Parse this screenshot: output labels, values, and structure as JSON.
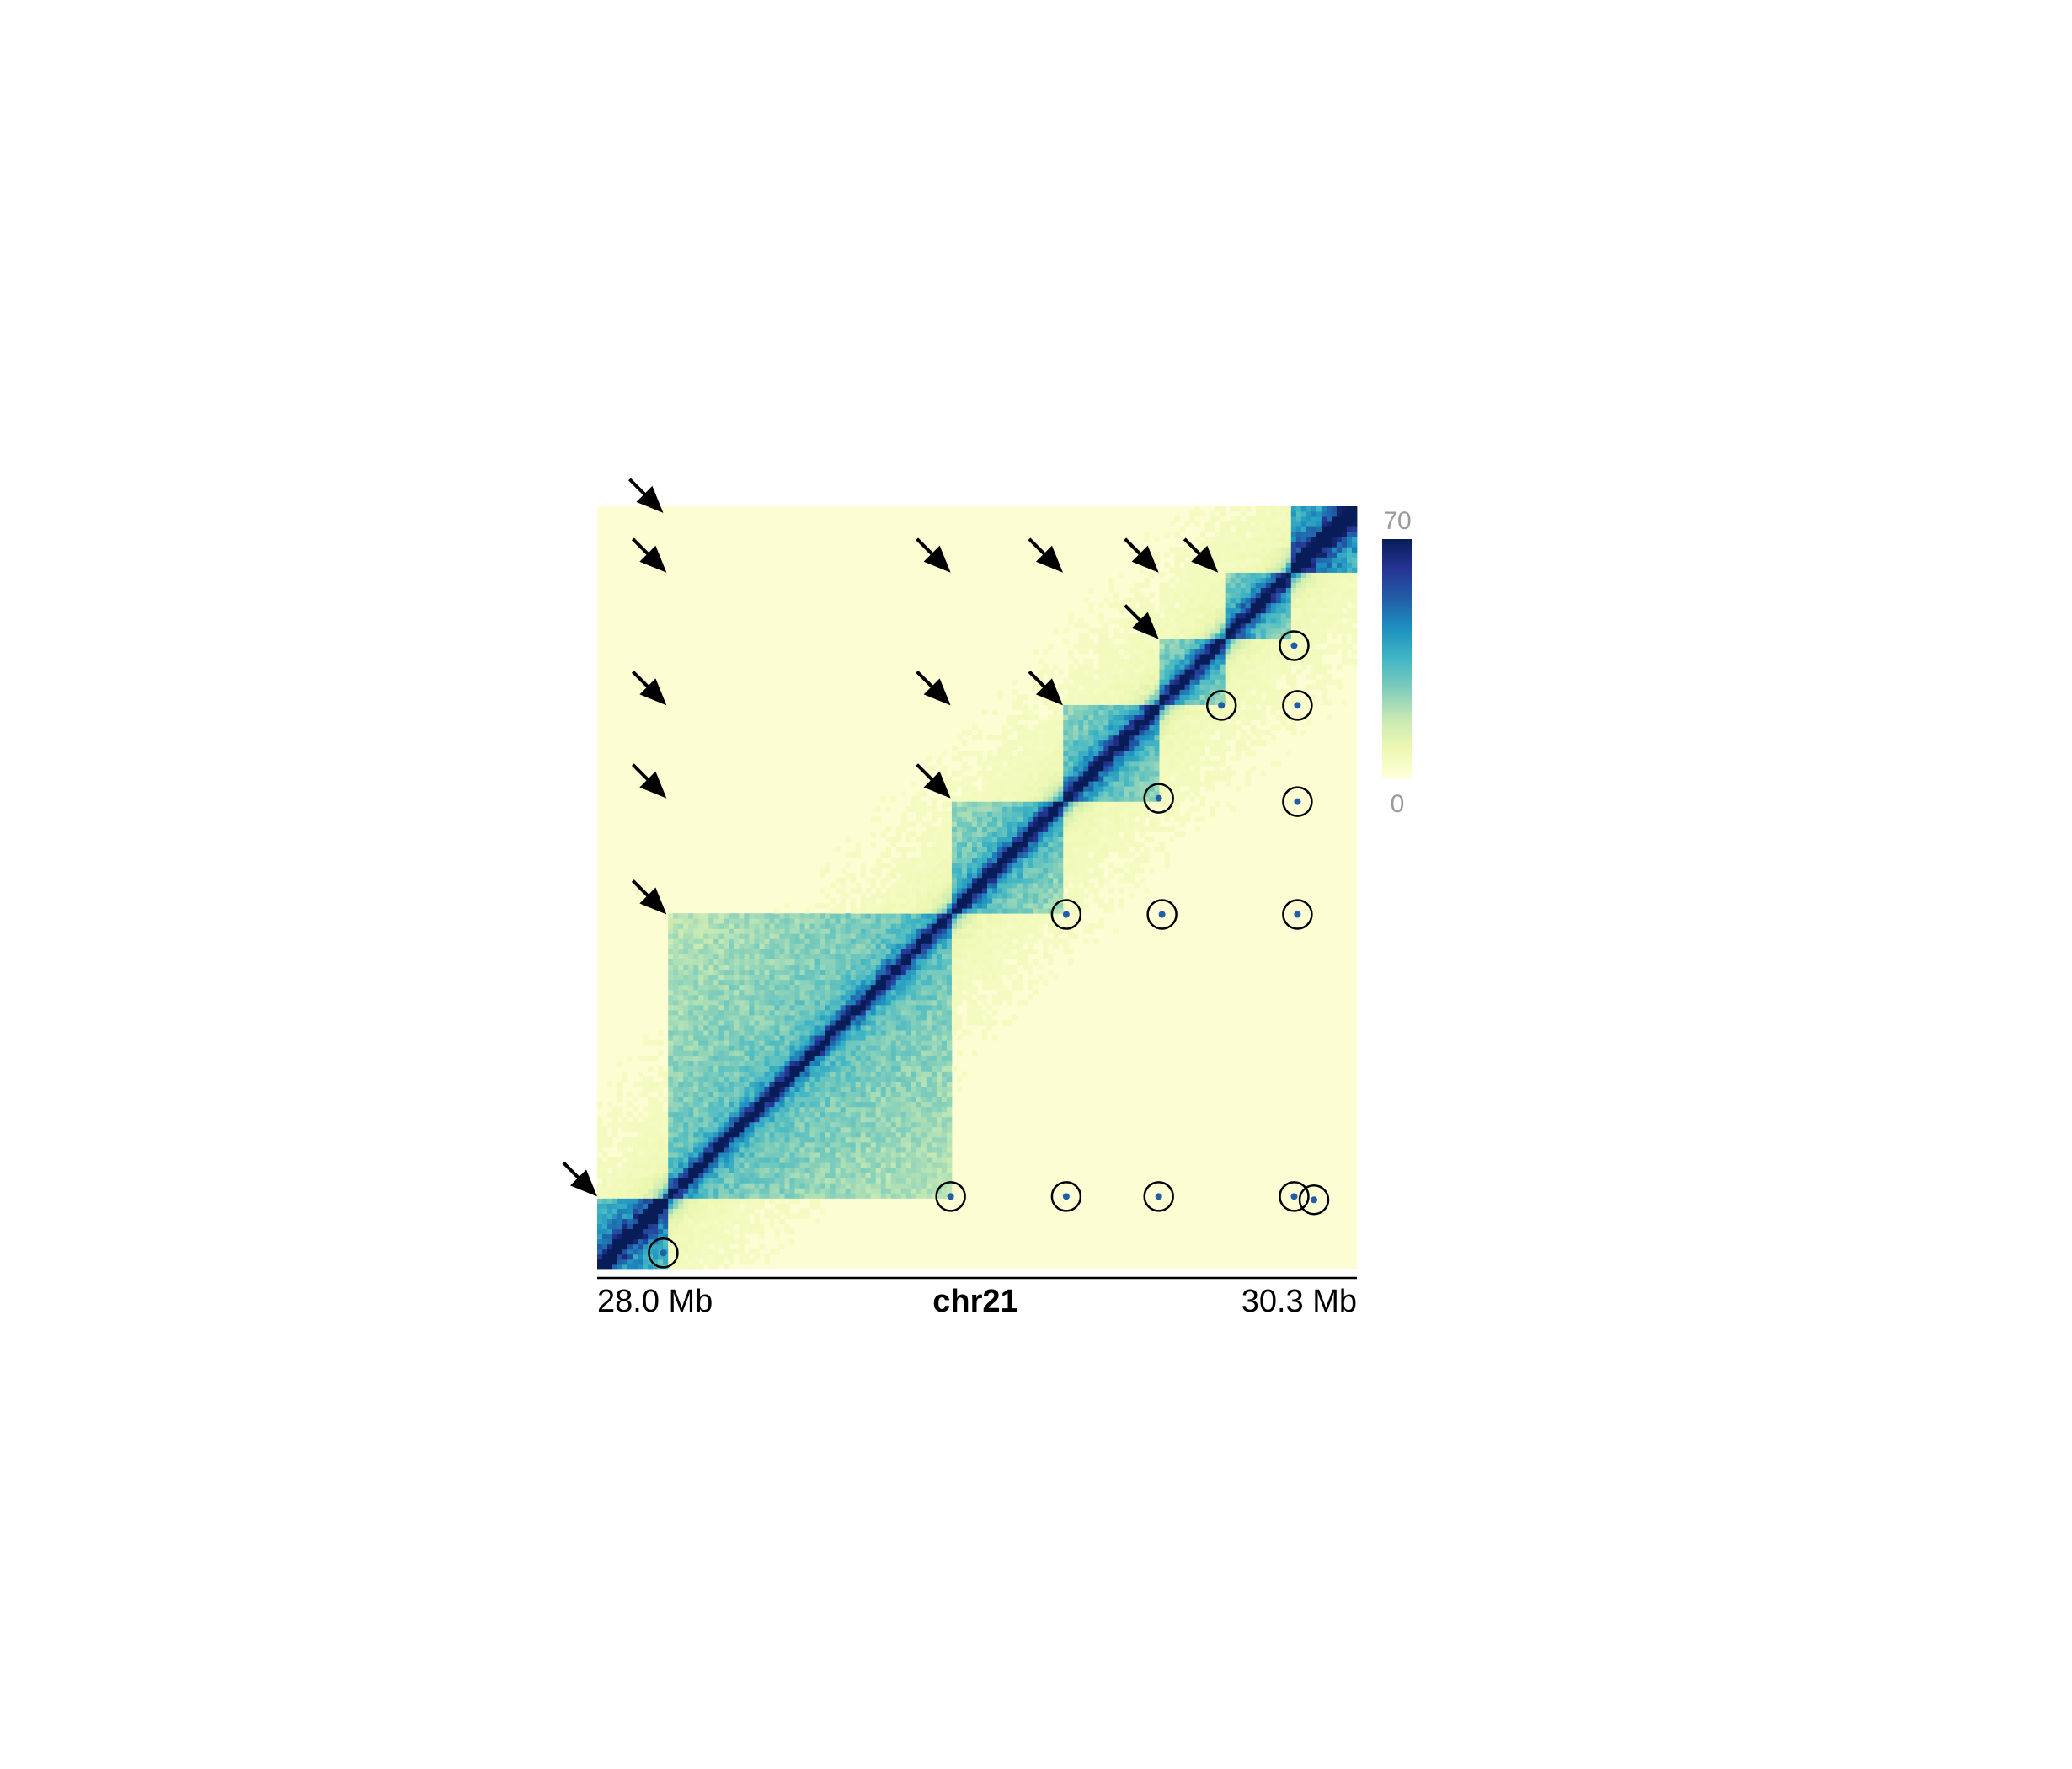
{
  "chart_data": {
    "type": "heatmap",
    "chromosome": "chr21",
    "x_start_label": "28.0 Mb",
    "x_end_label": "30.3 Mb",
    "range_mb": [
      28.0,
      30.3
    ],
    "colorscale": {
      "min_label": "0",
      "max_label": "70",
      "min": 0,
      "max": 70,
      "colors": [
        "#ffffd9",
        "#edf8b1",
        "#c7e9b4",
        "#7fcdbb",
        "#41b6c4",
        "#1d91c0",
        "#225ea8",
        "#253494",
        "#081d58"
      ]
    },
    "boundaries_mb": [
      28.0,
      28.21,
      29.07,
      29.41,
      29.7,
      29.9,
      30.1,
      30.3
    ],
    "domains": [
      {
        "start_mb": 28.0,
        "end_mb": 28.21,
        "intensity": 0.55
      },
      {
        "start_mb": 28.21,
        "end_mb": 29.07,
        "intensity": 0.33
      },
      {
        "start_mb": 29.07,
        "end_mb": 29.41,
        "intensity": 0.36
      },
      {
        "start_mb": 29.41,
        "end_mb": 29.7,
        "intensity": 0.38
      },
      {
        "start_mb": 29.7,
        "end_mb": 29.9,
        "intensity": 0.34
      },
      {
        "start_mb": 29.9,
        "end_mb": 30.1,
        "intensity": 0.4
      },
      {
        "start_mb": 30.1,
        "end_mb": 30.3,
        "intensity": 0.6
      }
    ],
    "loops_circled": [
      {
        "x_mb": 28.2,
        "y_mb": 28.05
      },
      {
        "x_mb": 29.07,
        "y_mb": 28.22
      },
      {
        "x_mb": 29.42,
        "y_mb": 28.22
      },
      {
        "x_mb": 29.7,
        "y_mb": 28.22
      },
      {
        "x_mb": 30.11,
        "y_mb": 28.22
      },
      {
        "x_mb": 30.17,
        "y_mb": 28.21
      },
      {
        "x_mb": 29.42,
        "y_mb": 29.07
      },
      {
        "x_mb": 29.71,
        "y_mb": 29.07
      },
      {
        "x_mb": 30.12,
        "y_mb": 29.07
      },
      {
        "x_mb": 29.7,
        "y_mb": 29.42
      },
      {
        "x_mb": 30.12,
        "y_mb": 29.41
      },
      {
        "x_mb": 29.89,
        "y_mb": 29.7
      },
      {
        "x_mb": 30.12,
        "y_mb": 29.7
      },
      {
        "x_mb": 30.11,
        "y_mb": 29.88
      }
    ],
    "stripe_arrows": [
      {
        "x_mb": 28.0,
        "y_mb": 28.22
      },
      {
        "x_mb": 28.21,
        "y_mb": 29.07
      },
      {
        "x_mb": 28.21,
        "y_mb": 29.42
      },
      {
        "x_mb": 28.21,
        "y_mb": 29.7
      },
      {
        "x_mb": 28.21,
        "y_mb": 30.1
      },
      {
        "x_mb": 28.2,
        "y_mb": 30.28
      },
      {
        "x_mb": 29.07,
        "y_mb": 29.42
      },
      {
        "x_mb": 29.07,
        "y_mb": 29.7
      },
      {
        "x_mb": 29.07,
        "y_mb": 30.1
      },
      {
        "x_mb": 29.41,
        "y_mb": 29.7
      },
      {
        "x_mb": 29.41,
        "y_mb": 30.1
      },
      {
        "x_mb": 29.7,
        "y_mb": 29.9
      },
      {
        "x_mb": 29.7,
        "y_mb": 30.1
      },
      {
        "x_mb": 29.88,
        "y_mb": 30.1
      }
    ]
  }
}
